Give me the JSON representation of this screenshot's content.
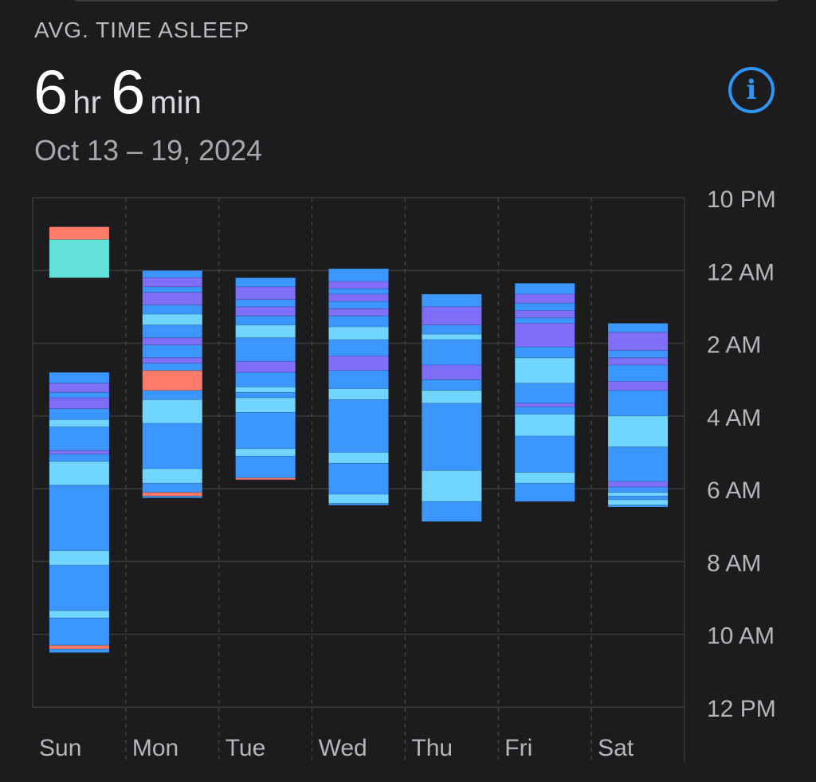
{
  "header": {
    "label": "AVG. TIME ASLEEP",
    "hours_value": "6",
    "hours_unit": "hr",
    "minutes_value": "6",
    "minutes_unit": "min",
    "date_range": "Oct 13 – 19, 2024",
    "info_icon": "info-circle-icon"
  },
  "colors": {
    "background": "#1c1c1e",
    "core": "#3b97fe",
    "rem": "#70d6ff",
    "deep": "#7e6ef8",
    "awake": "#ff7a68",
    "in_bed": "#5fe0d8",
    "info_accent": "#2f95f5"
  },
  "chart_data": {
    "type": "bar",
    "subtype": "sleep-stages-range",
    "categories": [
      "Sun",
      "Mon",
      "Tue",
      "Wed",
      "Thu",
      "Fri",
      "Sat"
    ],
    "y_axis": {
      "ticks": [
        "10 PM",
        "12 AM",
        "2 AM",
        "4 AM",
        "6 AM",
        "8 AM",
        "10 AM",
        "12 PM"
      ],
      "tick_hours_from_10pm": [
        0,
        2,
        4,
        6,
        8,
        10,
        12,
        14
      ],
      "range_hours_from_10pm": [
        0,
        14
      ],
      "position": "right",
      "reversed": true
    },
    "grid": true,
    "stages": [
      "core",
      "rem",
      "deep",
      "awake",
      "in_bed"
    ],
    "nights": [
      {
        "day": "Sun",
        "segments": [
          {
            "start": 0.8,
            "end": 1.15,
            "stage": "awake"
          },
          {
            "start": 1.15,
            "end": 2.2,
            "stage": "in_bed"
          },
          {
            "start": 4.8,
            "end": 5.1,
            "stage": "core"
          },
          {
            "start": 5.1,
            "end": 5.35,
            "stage": "deep"
          },
          {
            "start": 5.35,
            "end": 5.5,
            "stage": "core"
          },
          {
            "start": 5.5,
            "end": 5.8,
            "stage": "deep"
          },
          {
            "start": 5.8,
            "end": 6.1,
            "stage": "core"
          },
          {
            "start": 6.1,
            "end": 6.3,
            "stage": "rem"
          },
          {
            "start": 6.3,
            "end": 6.95,
            "stage": "core"
          },
          {
            "start": 6.95,
            "end": 7.05,
            "stage": "deep"
          },
          {
            "start": 7.05,
            "end": 7.25,
            "stage": "core"
          },
          {
            "start": 7.25,
            "end": 7.9,
            "stage": "rem"
          },
          {
            "start": 7.9,
            "end": 9.7,
            "stage": "core"
          },
          {
            "start": 9.7,
            "end": 10.1,
            "stage": "rem"
          },
          {
            "start": 10.1,
            "end": 11.35,
            "stage": "core"
          },
          {
            "start": 11.35,
            "end": 11.55,
            "stage": "rem"
          },
          {
            "start": 11.55,
            "end": 12.3,
            "stage": "core"
          },
          {
            "start": 12.3,
            "end": 12.4,
            "stage": "awake"
          },
          {
            "start": 12.4,
            "end": 12.5,
            "stage": "core"
          }
        ]
      },
      {
        "day": "Mon",
        "segments": [
          {
            "start": 2.0,
            "end": 2.2,
            "stage": "core"
          },
          {
            "start": 2.2,
            "end": 2.45,
            "stage": "deep"
          },
          {
            "start": 2.45,
            "end": 2.6,
            "stage": "core"
          },
          {
            "start": 2.6,
            "end": 2.95,
            "stage": "deep"
          },
          {
            "start": 2.95,
            "end": 3.2,
            "stage": "core"
          },
          {
            "start": 3.2,
            "end": 3.5,
            "stage": "rem"
          },
          {
            "start": 3.5,
            "end": 3.85,
            "stage": "core"
          },
          {
            "start": 3.85,
            "end": 4.05,
            "stage": "deep"
          },
          {
            "start": 4.05,
            "end": 4.4,
            "stage": "core"
          },
          {
            "start": 4.4,
            "end": 4.55,
            "stage": "deep"
          },
          {
            "start": 4.55,
            "end": 4.75,
            "stage": "core"
          },
          {
            "start": 4.75,
            "end": 5.3,
            "stage": "awake"
          },
          {
            "start": 5.3,
            "end": 5.55,
            "stage": "core"
          },
          {
            "start": 5.55,
            "end": 6.2,
            "stage": "rem"
          },
          {
            "start": 6.2,
            "end": 7.45,
            "stage": "core"
          },
          {
            "start": 7.45,
            "end": 7.85,
            "stage": "rem"
          },
          {
            "start": 7.85,
            "end": 8.1,
            "stage": "core"
          },
          {
            "start": 8.1,
            "end": 8.1,
            "stage": "awake"
          },
          {
            "start": 8.1,
            "end": 8.2,
            "stage": "awake"
          },
          {
            "start": 8.2,
            "end": 8.25,
            "stage": "core"
          }
        ]
      },
      {
        "day": "Tue",
        "segments": [
          {
            "start": 2.2,
            "end": 2.45,
            "stage": "core"
          },
          {
            "start": 2.45,
            "end": 2.8,
            "stage": "deep"
          },
          {
            "start": 2.8,
            "end": 3.0,
            "stage": "core"
          },
          {
            "start": 3.0,
            "end": 3.25,
            "stage": "deep"
          },
          {
            "start": 3.25,
            "end": 3.5,
            "stage": "core"
          },
          {
            "start": 3.5,
            "end": 3.85,
            "stage": "rem"
          },
          {
            "start": 3.85,
            "end": 4.5,
            "stage": "core"
          },
          {
            "start": 4.5,
            "end": 4.8,
            "stage": "deep"
          },
          {
            "start": 4.8,
            "end": 5.2,
            "stage": "core"
          },
          {
            "start": 5.2,
            "end": 5.35,
            "stage": "rem"
          },
          {
            "start": 5.35,
            "end": 5.5,
            "stage": "core"
          },
          {
            "start": 5.5,
            "end": 5.9,
            "stage": "rem"
          },
          {
            "start": 5.9,
            "end": 6.9,
            "stage": "core"
          },
          {
            "start": 6.9,
            "end": 7.1,
            "stage": "rem"
          },
          {
            "start": 7.1,
            "end": 7.7,
            "stage": "core"
          },
          {
            "start": 7.7,
            "end": 7.75,
            "stage": "awake"
          },
          {
            "start": 7.75,
            "end": 7.45,
            "stage": "core"
          }
        ]
      },
      {
        "day": "Wed",
        "segments": [
          {
            "start": 1.95,
            "end": 2.3,
            "stage": "core"
          },
          {
            "start": 2.3,
            "end": 2.5,
            "stage": "deep"
          },
          {
            "start": 2.5,
            "end": 2.65,
            "stage": "core"
          },
          {
            "start": 2.65,
            "end": 2.85,
            "stage": "deep"
          },
          {
            "start": 2.85,
            "end": 3.05,
            "stage": "core"
          },
          {
            "start": 3.05,
            "end": 3.25,
            "stage": "deep"
          },
          {
            "start": 3.25,
            "end": 3.55,
            "stage": "core"
          },
          {
            "start": 3.55,
            "end": 3.9,
            "stage": "rem"
          },
          {
            "start": 3.9,
            "end": 4.35,
            "stage": "core"
          },
          {
            "start": 4.35,
            "end": 4.75,
            "stage": "deep"
          },
          {
            "start": 4.75,
            "end": 5.25,
            "stage": "core"
          },
          {
            "start": 5.25,
            "end": 5.55,
            "stage": "rem"
          },
          {
            "start": 5.55,
            "end": 7.0,
            "stage": "core"
          },
          {
            "start": 7.0,
            "end": 7.3,
            "stage": "rem"
          },
          {
            "start": 7.3,
            "end": 8.15,
            "stage": "core"
          },
          {
            "start": 8.15,
            "end": 8.4,
            "stage": "rem"
          },
          {
            "start": 8.4,
            "end": 8.45,
            "stage": "core"
          }
        ]
      },
      {
        "day": "Thu",
        "segments": [
          {
            "start": 2.65,
            "end": 3.0,
            "stage": "core"
          },
          {
            "start": 3.0,
            "end": 3.5,
            "stage": "deep"
          },
          {
            "start": 3.5,
            "end": 3.75,
            "stage": "core"
          },
          {
            "start": 3.75,
            "end": 3.9,
            "stage": "rem"
          },
          {
            "start": 3.9,
            "end": 4.6,
            "stage": "core"
          },
          {
            "start": 4.6,
            "end": 5.0,
            "stage": "deep"
          },
          {
            "start": 5.0,
            "end": 5.3,
            "stage": "core"
          },
          {
            "start": 5.3,
            "end": 5.65,
            "stage": "rem"
          },
          {
            "start": 5.65,
            "end": 7.5,
            "stage": "core"
          },
          {
            "start": 7.5,
            "end": 8.35,
            "stage": "rem"
          },
          {
            "start": 8.35,
            "end": 8.9,
            "stage": "core"
          }
        ]
      },
      {
        "day": "Fri",
        "segments": [
          {
            "start": 2.35,
            "end": 2.65,
            "stage": "core"
          },
          {
            "start": 2.65,
            "end": 2.9,
            "stage": "deep"
          },
          {
            "start": 2.9,
            "end": 3.1,
            "stage": "core"
          },
          {
            "start": 3.1,
            "end": 3.3,
            "stage": "deep"
          },
          {
            "start": 3.3,
            "end": 3.45,
            "stage": "core"
          },
          {
            "start": 3.45,
            "end": 4.1,
            "stage": "deep"
          },
          {
            "start": 4.1,
            "end": 4.4,
            "stage": "core"
          },
          {
            "start": 4.4,
            "end": 5.1,
            "stage": "rem"
          },
          {
            "start": 5.1,
            "end": 5.65,
            "stage": "core"
          },
          {
            "start": 5.65,
            "end": 5.75,
            "stage": "deep"
          },
          {
            "start": 5.75,
            "end": 5.95,
            "stage": "core"
          },
          {
            "start": 5.95,
            "end": 6.55,
            "stage": "rem"
          },
          {
            "start": 6.55,
            "end": 7.55,
            "stage": "core"
          },
          {
            "start": 7.55,
            "end": 7.85,
            "stage": "rem"
          },
          {
            "start": 7.85,
            "end": 8.35,
            "stage": "core"
          }
        ]
      },
      {
        "day": "Sat",
        "segments": [
          {
            "start": 3.45,
            "end": 3.7,
            "stage": "core"
          },
          {
            "start": 3.7,
            "end": 4.2,
            "stage": "deep"
          },
          {
            "start": 4.2,
            "end": 4.4,
            "stage": "core"
          },
          {
            "start": 4.4,
            "end": 4.6,
            "stage": "deep"
          },
          {
            "start": 4.6,
            "end": 5.05,
            "stage": "core"
          },
          {
            "start": 5.05,
            "end": 5.3,
            "stage": "deep"
          },
          {
            "start": 5.3,
            "end": 6.0,
            "stage": "core"
          },
          {
            "start": 6.0,
            "end": 6.85,
            "stage": "rem"
          },
          {
            "start": 6.85,
            "end": 7.8,
            "stage": "core"
          },
          {
            "start": 7.8,
            "end": 7.95,
            "stage": "deep"
          },
          {
            "start": 7.95,
            "end": 8.1,
            "stage": "core"
          },
          {
            "start": 8.1,
            "end": 8.2,
            "stage": "rem"
          },
          {
            "start": 8.2,
            "end": 8.3,
            "stage": "core"
          },
          {
            "start": 8.3,
            "end": 8.45,
            "stage": "rem"
          },
          {
            "start": 8.45,
            "end": 8.5,
            "stage": "core"
          }
        ]
      }
    ]
  }
}
